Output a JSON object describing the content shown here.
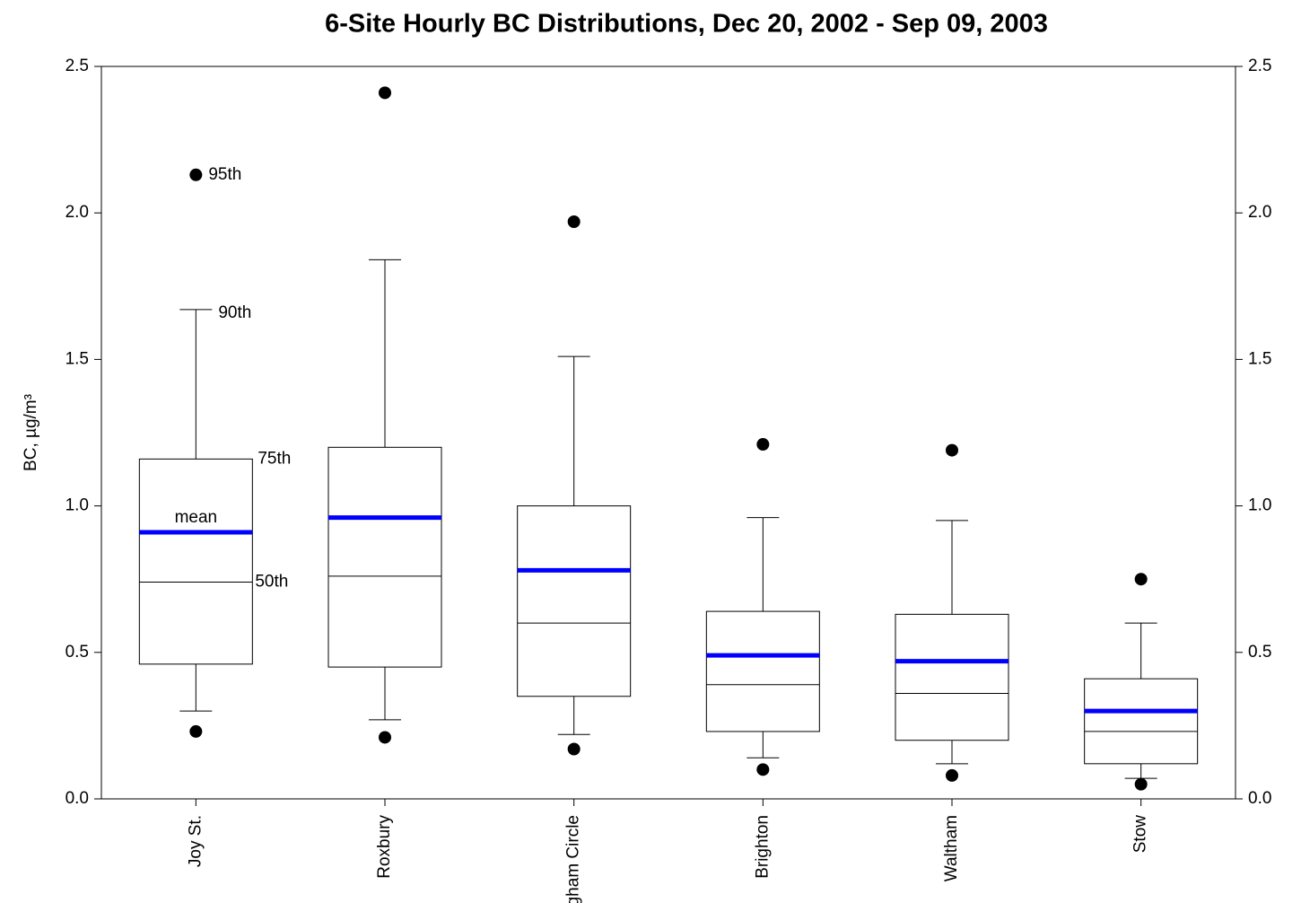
{
  "chart_data": {
    "type": "box",
    "title": "6-Site Hourly BC Distributions, Dec 20, 2002 - Sep 09, 2003",
    "y_label": "BC, µg/m³",
    "categories": [
      "Joy St.",
      "Roxbury",
      "Brigham Circle",
      "Brighton",
      "Waltham",
      "Stow"
    ],
    "p5": [
      0.23,
      0.21,
      0.17,
      0.1,
      0.08,
      0.05
    ],
    "p10": [
      0.3,
      0.27,
      0.22,
      0.14,
      0.12,
      0.07
    ],
    "p25": [
      0.46,
      0.45,
      0.35,
      0.23,
      0.2,
      0.12
    ],
    "median": [
      0.74,
      0.76,
      0.6,
      0.39,
      0.36,
      0.23
    ],
    "p75": [
      1.16,
      1.2,
      1.0,
      0.64,
      0.63,
      0.41
    ],
    "p90": [
      1.67,
      1.84,
      1.51,
      0.96,
      0.95,
      0.6
    ],
    "p95": [
      2.13,
      2.41,
      1.97,
      1.21,
      1.19,
      0.75
    ],
    "mean": [
      0.91,
      0.96,
      0.78,
      0.49,
      0.47,
      0.3
    ],
    "mean_color": "#0000ff",
    "annotations": [
      "95th",
      "90th",
      "75th",
      "mean",
      "50th"
    ],
    "ylim": [
      0,
      2.5
    ],
    "yticks": [
      {
        "value": 0,
        "label": "0.0"
      },
      0.5,
      {
        "value": 1,
        "label": "1.0"
      },
      1.5,
      {
        "value": 2,
        "label": "2.0"
      },
      2.5
    ]
  }
}
